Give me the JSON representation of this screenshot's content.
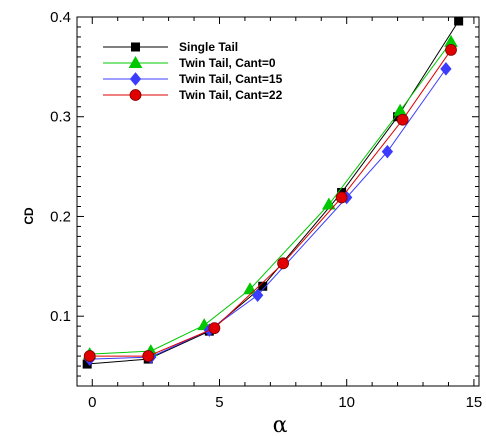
{
  "chart_data": {
    "type": "line",
    "title": "",
    "xlabel": "α",
    "ylabel": "CD",
    "xlim": [
      -0.6,
      15.2
    ],
    "ylim": [
      0.03,
      0.4
    ],
    "xticks": [
      0,
      5,
      10,
      15
    ],
    "yticks": [
      0.1,
      0.2,
      0.3,
      0.4
    ],
    "xtick_labels": [
      "0",
      "5",
      "10",
      "15"
    ],
    "ytick_labels": [
      "0.1",
      "0.2",
      "0.3",
      "0.4"
    ],
    "grid": false,
    "legend_position": "top-left",
    "series": [
      {
        "name": "Single Tail",
        "color": "#000000",
        "marker": "square",
        "x": [
          -0.2,
          2.2,
          4.6,
          6.7,
          9.8,
          12.0,
          14.4
        ],
        "y": [
          0.052,
          0.057,
          0.085,
          0.13,
          0.224,
          0.3,
          0.396
        ]
      },
      {
        "name": "Twin Tail, Cant=0",
        "color": "#00c800",
        "marker": "triangle",
        "x": [
          -0.1,
          2.3,
          4.4,
          6.2,
          9.3,
          12.1,
          14.1
        ],
        "y": [
          0.062,
          0.065,
          0.091,
          0.127,
          0.212,
          0.306,
          0.375
        ]
      },
      {
        "name": "Twin Tail, Cant=15",
        "color": "#3c3cff",
        "marker": "diamond",
        "x": [
          -0.1,
          2.3,
          4.6,
          6.5,
          10.0,
          11.6,
          13.9
        ],
        "y": [
          0.057,
          0.059,
          0.086,
          0.121,
          0.219,
          0.265,
          0.348
        ]
      },
      {
        "name": "Twin Tail, Cant=22",
        "color": "#e00000",
        "marker": "circle",
        "x": [
          -0.1,
          2.2,
          4.8,
          7.5,
          9.8,
          12.2,
          14.1
        ],
        "y": [
          0.06,
          0.06,
          0.088,
          0.153,
          0.219,
          0.297,
          0.367
        ]
      }
    ]
  }
}
